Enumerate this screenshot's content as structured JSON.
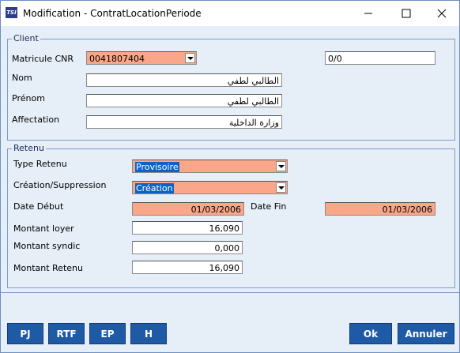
{
  "window": {
    "icon": "TSI",
    "title": "Modification - ContratLocationPeriode"
  },
  "client": {
    "legend": "Client",
    "matricule_label": "Matricule CNR",
    "matricule": "0041807404",
    "counter": "0/0",
    "nom_label": "Nom",
    "nom": "الطالبي لطفي",
    "prenom_label": "Prénom",
    "prenom": "الطالبي لطفي",
    "affectation_label": "Affectation",
    "affectation": "وزارة الداخلية"
  },
  "retenu": {
    "legend": "Retenu",
    "type_label": "Type Retenu",
    "type": "Provisoire",
    "creation_label": "Création/Suppression",
    "creation": "Création",
    "date_debut_label": "Date Début",
    "date_debut": "01/03/2006",
    "date_fin_label": "Date Fin",
    "date_fin": "01/03/2006",
    "loyer_label": "Montant loyer",
    "loyer": "16,090",
    "syndic_label": "Montant syndic",
    "syndic": "0,000",
    "montant_retenu_label": "Montant Retenu",
    "montant_retenu": "16,090"
  },
  "buttons": [
    "PJ",
    "RTF",
    "EP",
    "H",
    "Ok",
    "Annuler"
  ]
}
